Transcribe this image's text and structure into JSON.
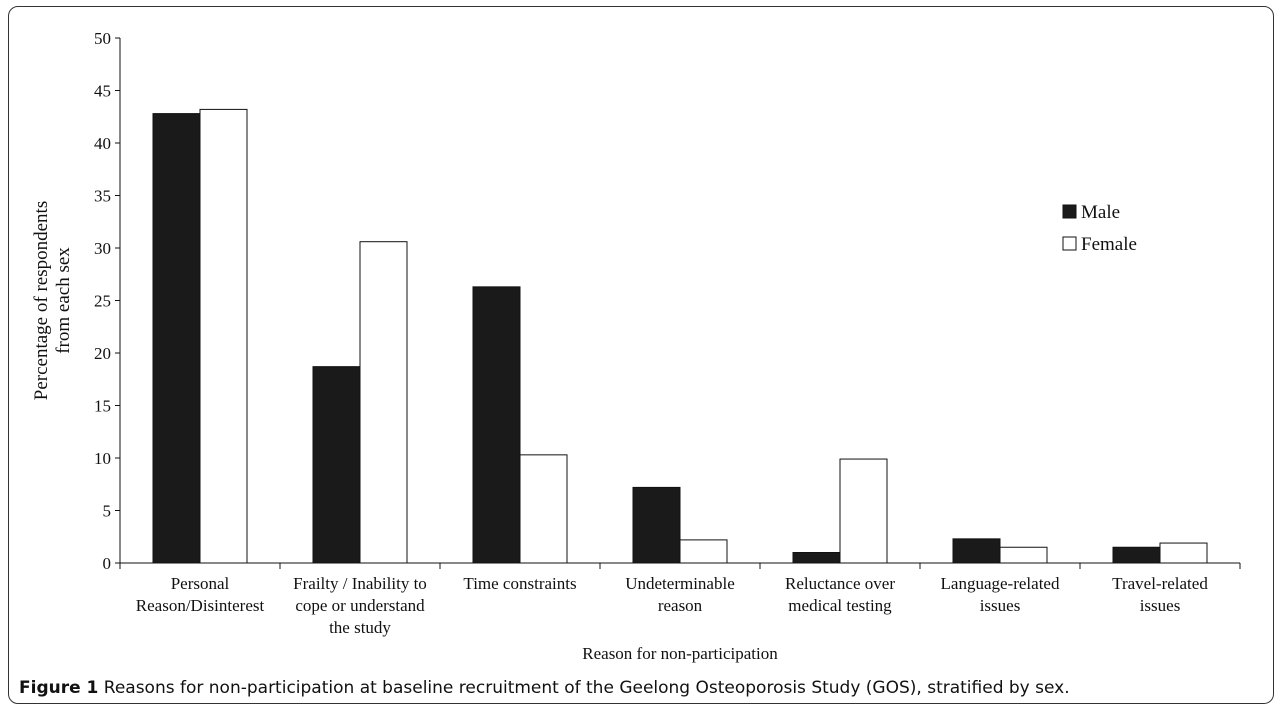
{
  "chart_data": {
    "type": "bar",
    "categories": [
      [
        "Personal",
        "Reason/Disinterest"
      ],
      [
        "Frailty / Inability to",
        "cope or understand",
        "the study"
      ],
      [
        "Time constraints"
      ],
      [
        "Undeterminable",
        "reason"
      ],
      [
        "Reluctance over",
        "medical testing"
      ],
      [
        "Language-related",
        "issues"
      ],
      [
        "Travel-related",
        "issues"
      ]
    ],
    "series": [
      {
        "name": "Male",
        "values": [
          42.8,
          18.7,
          26.3,
          7.2,
          1.0,
          2.3,
          1.5
        ],
        "fill": "#1a1a1a"
      },
      {
        "name": "Female",
        "values": [
          43.2,
          30.6,
          10.3,
          2.2,
          9.9,
          1.5,
          1.9
        ],
        "fill": "#ffffff"
      }
    ],
    "xlabel": "Reason for non-participation",
    "ylabel_lines": [
      "Percentage of respondents",
      "from each sex"
    ],
    "ylim": [
      0,
      50
    ],
    "yticks": [
      0,
      5,
      10,
      15,
      20,
      25,
      30,
      35,
      40,
      45,
      50
    ],
    "legend_position": "right",
    "grid": false
  },
  "caption": {
    "label": "Figure 1",
    "text": " Reasons for non-participation at baseline recruitment of the Geelong Osteoporosis Study (GOS), stratified by sex."
  }
}
